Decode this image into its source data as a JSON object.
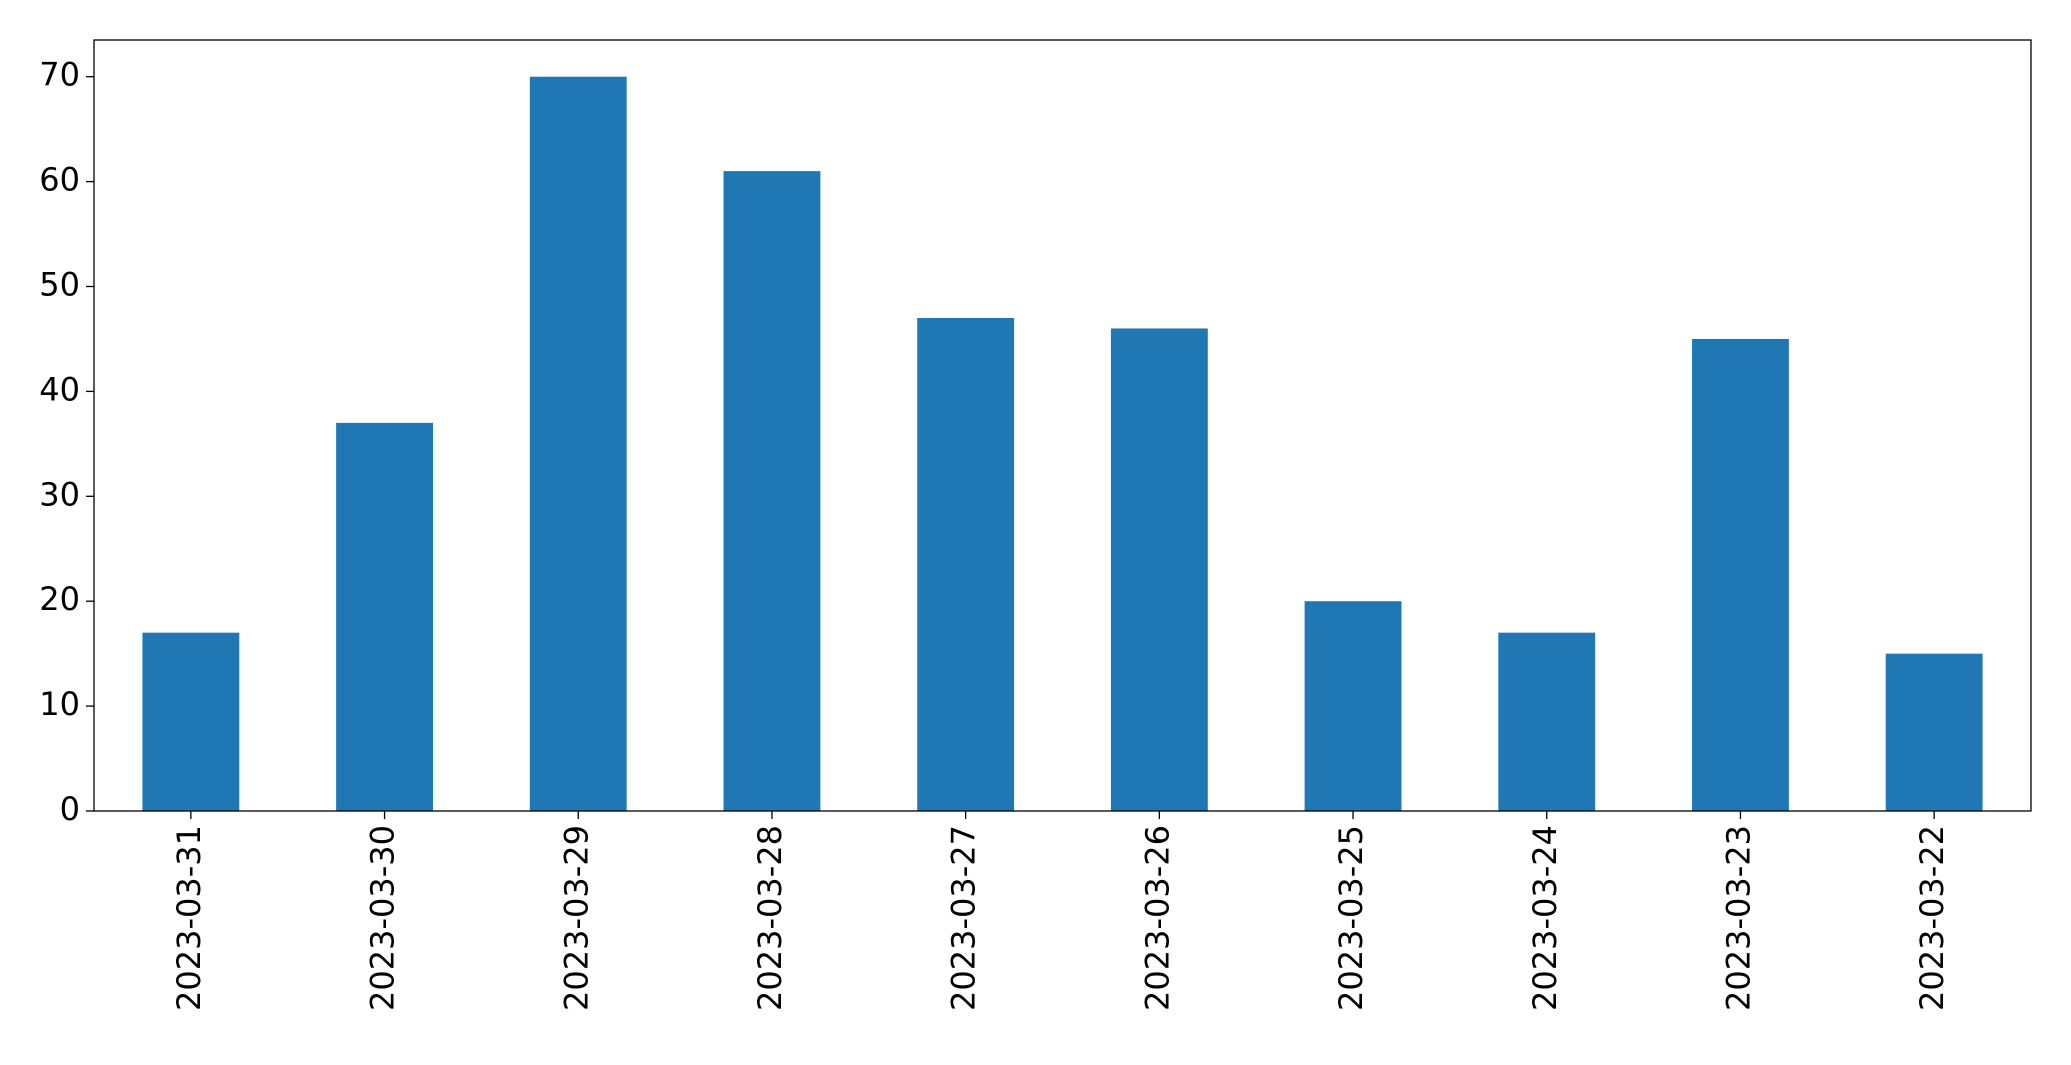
{
  "chart_data": {
    "type": "bar",
    "categories": [
      "2023-03-31",
      "2023-03-30",
      "2023-03-29",
      "2023-03-28",
      "2023-03-27",
      "2023-03-26",
      "2023-03-25",
      "2023-03-24",
      "2023-03-23",
      "2023-03-22"
    ],
    "values": [
      17,
      37,
      70,
      61,
      47,
      46,
      20,
      17,
      45,
      15
    ],
    "color": "#1f77b4",
    "ylim": [
      0,
      73.5
    ],
    "yticks": [
      0,
      10,
      20,
      30,
      40,
      50,
      60,
      70
    ],
    "grid": false
  }
}
